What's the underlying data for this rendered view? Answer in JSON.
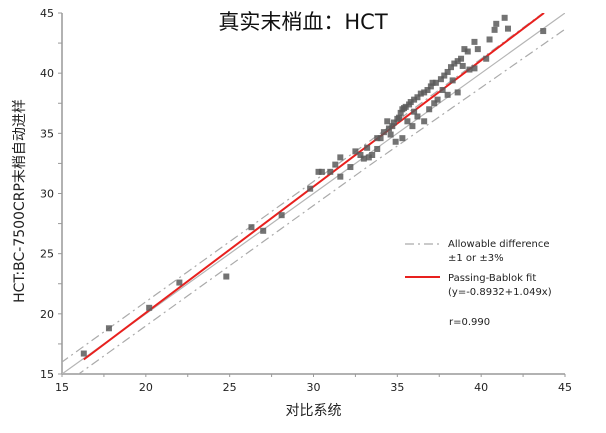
{
  "chart_data": {
    "type": "scatter",
    "title": "真实末梢血：HCT",
    "xlabel": "对比系统",
    "ylabel": "HCT:BC-7500CRP末梢自动进样",
    "xlim": [
      15,
      45
    ],
    "ylim": [
      15,
      45
    ],
    "xticks": [
      15,
      20,
      25,
      30,
      35,
      40,
      45
    ],
    "yticks": [
      15,
      20,
      25,
      30,
      35,
      40,
      45
    ],
    "grid": false,
    "legend_position": "lower right (inside)",
    "legend": [
      {
        "label": "Allowable difference",
        "style": "dash-dot",
        "color": "#aaaaaa"
      },
      {
        "label": "±1 or ±3%",
        "style": "none"
      },
      {
        "label": "Passing-Bablok fit",
        "style": "solid",
        "color": "#e8201e"
      },
      {
        "label": "(y=-0.8932+1.049x)",
        "style": "none"
      }
    ],
    "annotation": "r=0.990",
    "fit": {
      "intercept": -0.8932,
      "slope": 1.049,
      "color": "#e8201e"
    },
    "identity_line": {
      "color": "#b5b5b5"
    },
    "allowable_difference": "±1 or ±3%",
    "points": [
      [
        16.3,
        16.7
      ],
      [
        17.8,
        18.8
      ],
      [
        20.2,
        20.5
      ],
      [
        22.0,
        22.6
      ],
      [
        24.8,
        23.1
      ],
      [
        26.3,
        27.2
      ],
      [
        27.0,
        26.9
      ],
      [
        28.1,
        28.2
      ],
      [
        29.8,
        30.4
      ],
      [
        30.3,
        31.8
      ],
      [
        30.5,
        31.8
      ],
      [
        31.0,
        31.8
      ],
      [
        31.3,
        32.4
      ],
      [
        31.6,
        33.0
      ],
      [
        31.6,
        31.4
      ],
      [
        32.2,
        32.2
      ],
      [
        32.5,
        33.5
      ],
      [
        32.8,
        33.2
      ],
      [
        33.0,
        32.9
      ],
      [
        33.2,
        33.8
      ],
      [
        33.3,
        33.0
      ],
      [
        33.5,
        33.2
      ],
      [
        33.8,
        34.6
      ],
      [
        34.0,
        34.6
      ],
      [
        34.2,
        35.1
      ],
      [
        34.5,
        35.4
      ],
      [
        34.7,
        35.6
      ],
      [
        34.8,
        35.9
      ],
      [
        35.0,
        36.2
      ],
      [
        35.1,
        36.3
      ],
      [
        35.2,
        36.7
      ],
      [
        35.3,
        37.0
      ],
      [
        35.4,
        37.1
      ],
      [
        35.5,
        37.2
      ],
      [
        35.7,
        37.4
      ],
      [
        35.8,
        37.6
      ],
      [
        36.0,
        37.8
      ],
      [
        36.2,
        38.0
      ],
      [
        36.4,
        38.3
      ],
      [
        36.6,
        38.4
      ],
      [
        36.8,
        38.6
      ],
      [
        37.0,
        38.9
      ],
      [
        37.1,
        39.2
      ],
      [
        37.3,
        39.2
      ],
      [
        37.6,
        39.5
      ],
      [
        37.8,
        39.8
      ],
      [
        38.0,
        40.1
      ],
      [
        38.2,
        40.5
      ],
      [
        38.4,
        40.8
      ],
      [
        38.6,
        41.0
      ],
      [
        38.8,
        41.2
      ],
      [
        39.0,
        42.0
      ],
      [
        39.2,
        41.8
      ],
      [
        39.6,
        42.6
      ],
      [
        39.8,
        42.0
      ],
      [
        40.3,
        41.2
      ],
      [
        40.5,
        42.8
      ],
      [
        40.8,
        43.6
      ],
      [
        40.9,
        44.1
      ],
      [
        41.4,
        44.6
      ],
      [
        41.6,
        43.7
      ],
      [
        43.7,
        43.5
      ],
      [
        34.9,
        34.3
      ],
      [
        35.3,
        34.6
      ],
      [
        36.2,
        36.4
      ],
      [
        36.6,
        36.0
      ],
      [
        37.4,
        37.8
      ],
      [
        38.0,
        38.2
      ],
      [
        38.6,
        38.4
      ],
      [
        39.6,
        40.4
      ],
      [
        35.6,
        36.0
      ],
      [
        34.4,
        36.0
      ],
      [
        36.9,
        37.0
      ],
      [
        37.7,
        38.6
      ],
      [
        38.3,
        39.4
      ],
      [
        33.8,
        33.7
      ],
      [
        34.6,
        34.9
      ],
      [
        36.0,
        36.8
      ],
      [
        35.9,
        35.6
      ],
      [
        37.2,
        37.5
      ],
      [
        38.9,
        40.6
      ],
      [
        39.3,
        40.3
      ]
    ]
  }
}
